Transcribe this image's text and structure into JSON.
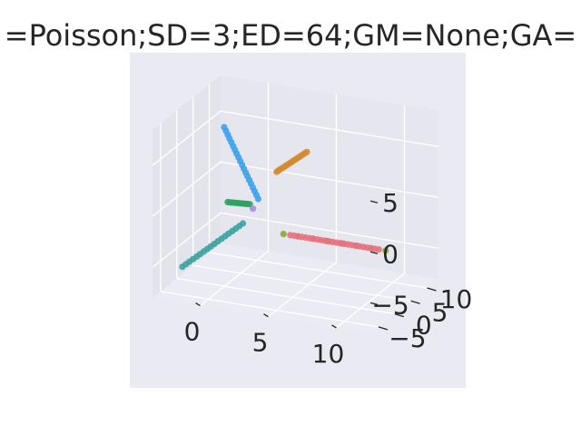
{
  "chart_data": {
    "type": "scatter",
    "projection": "3d",
    "title": "=Poisson;SD=3;ED=64;GM=None;GA=",
    "xlabel": "",
    "ylabel": "",
    "zlabel": "",
    "grid": true,
    "legend": "none",
    "x_ticks": [
      "0",
      "5",
      "10"
    ],
    "y_ticks": [
      "−5",
      "0",
      "5",
      "10"
    ],
    "z_ticks": [
      "−5",
      "0",
      "5"
    ],
    "colors": {
      "background": "#eaeaf2",
      "pane_left": "#e3e3ec",
      "pane_back": "#e6e6ee",
      "pane_floor": "#ebebf3",
      "grid": "#ffffff",
      "text": "#262626"
    },
    "series": [
      {
        "color": "#3ba3ec",
        "x": [
          -0.5,
          2.0
        ],
        "y": [
          2.0,
          2.0
        ],
        "z": [
          7.0,
          0.5
        ],
        "count": 20
      },
      {
        "color": "#3ba3a0",
        "x": [
          -2.5,
          1.0
        ],
        "y": [
          -2.5,
          1.5
        ],
        "z": [
          -6.0,
          -2.0
        ],
        "count": 18
      },
      {
        "color": "#2ca25f",
        "x": [
          0.0,
          1.5
        ],
        "y": [
          1.0,
          1.5
        ],
        "z": [
          0.0,
          0.0
        ],
        "count": 10
      },
      {
        "color": "#a68bde",
        "x": [
          1.8,
          1.8
        ],
        "y": [
          1.2,
          1.2
        ],
        "z": [
          -0.3,
          -0.3
        ],
        "count": 1
      },
      {
        "color": "#d08c2e",
        "x": [
          3.0,
          4.5
        ],
        "y": [
          3.5,
          6.5
        ],
        "z": [
          3.0,
          4.5
        ],
        "count": 14
      },
      {
        "color": "#8fa63a",
        "x": [
          3.5,
          11.0
        ],
        "y": [
          3.5,
          3.5
        ],
        "z": [
          -3.0,
          -3.0
        ],
        "count": 8
      },
      {
        "color": "#e8717e",
        "x": [
          4.0,
          10.5
        ],
        "y": [
          3.5,
          3.5
        ],
        "z": [
          -3.0,
          -3.0
        ],
        "count": 24
      }
    ]
  }
}
